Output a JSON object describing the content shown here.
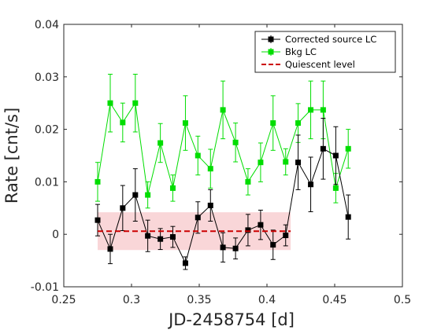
{
  "chart_data": {
    "type": "line",
    "xlabel": "JD-2458754 [d]",
    "ylabel": "Rate [cnt/s]",
    "xlim": [
      0.25,
      0.5
    ],
    "ylim": [
      -0.01,
      0.04
    ],
    "xticks": [
      0.25,
      0.3,
      0.35,
      0.4,
      0.45,
      0.5
    ],
    "xtick_labels": [
      "0.25",
      "0.3",
      "0.35",
      "0.4",
      "0.45",
      "0.5"
    ],
    "yticks": [
      -0.01,
      0,
      0.01,
      0.02,
      0.03,
      0.04
    ],
    "ytick_labels": [
      "-0.01",
      "0",
      "0.01",
      "0.02",
      "0.03",
      "0.04"
    ],
    "grid": false,
    "legend_position": "top-right",
    "series": [
      {
        "name": "Corrected source LC",
        "color": "#000000",
        "marker": "square",
        "x": [
          0.275,
          0.2843,
          0.2935,
          0.3028,
          0.312,
          0.3213,
          0.3305,
          0.3398,
          0.349,
          0.3583,
          0.3675,
          0.3768,
          0.386,
          0.3953,
          0.4045,
          0.4138,
          0.423,
          0.4323,
          0.4415,
          0.4508,
          0.46
        ],
        "y": [
          0.0027,
          -0.0028,
          0.005,
          0.0075,
          -0.0003,
          -0.0009,
          -0.0005,
          -0.0055,
          0.0032,
          0.0055,
          -0.0025,
          -0.0027,
          0.0008,
          0.0018,
          -0.002,
          -0.0002,
          0.0137,
          0.0095,
          0.0163,
          0.015,
          0.0033
        ],
        "err": [
          0.003,
          0.0028,
          0.0043,
          0.005,
          0.003,
          0.002,
          0.002,
          0.0012,
          0.003,
          0.003,
          0.0028,
          0.002,
          0.003,
          0.0028,
          0.0028,
          0.002,
          0.0052,
          0.0052,
          0.0058,
          0.0055,
          0.0042
        ]
      },
      {
        "name": "Bkg LC",
        "color": "#00dd00",
        "marker": "square",
        "x": [
          0.275,
          0.2843,
          0.2935,
          0.3028,
          0.312,
          0.3213,
          0.3305,
          0.3398,
          0.349,
          0.3583,
          0.3675,
          0.3768,
          0.386,
          0.3953,
          0.4045,
          0.4138,
          0.423,
          0.4323,
          0.4415,
          0.4508,
          0.46
        ],
        "y": [
          0.01,
          0.025,
          0.0213,
          0.025,
          0.0075,
          0.0174,
          0.0088,
          0.0212,
          0.015,
          0.0125,
          0.0237,
          0.0175,
          0.01,
          0.0137,
          0.0212,
          0.0138,
          0.0212,
          0.0237,
          0.0237,
          0.0088,
          0.0163
        ],
        "err": [
          0.0037,
          0.0055,
          0.0037,
          0.0055,
          0.0025,
          0.0037,
          0.0025,
          0.0052,
          0.0037,
          0.0037,
          0.0055,
          0.0037,
          0.0025,
          0.0037,
          0.0052,
          0.0025,
          0.0037,
          0.0055,
          0.0055,
          0.0028,
          0.0037
        ]
      }
    ],
    "quiescent_level": {
      "name": "Quiescent level",
      "color": "#cc0000",
      "x_range": [
        0.275,
        0.4175
      ],
      "value": 0.0006,
      "band": [
        -0.003,
        0.0042
      ],
      "band_color": "#f9d6d8"
    }
  }
}
